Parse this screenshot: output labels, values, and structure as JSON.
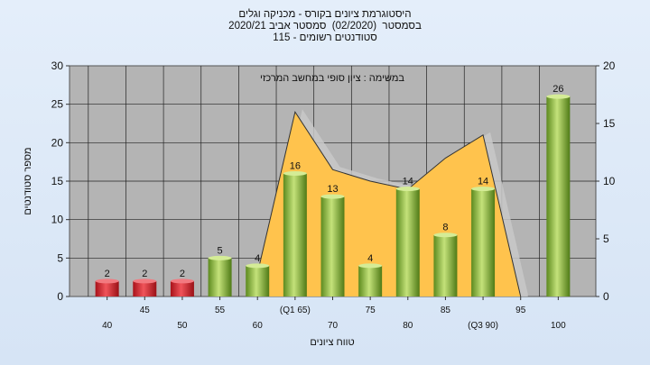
{
  "chart_title_lines": [
    "היסטוגרמת ציונים בקורס - מכניקה וגלים",
    "בסמסטר  (02/2020)  סמסטר אביב 2020/21",
    "סטודנטים רשומים - 115"
  ],
  "colors": {
    "plot_bg": "#b4b4b4",
    "bar_low": "#d8232c",
    "bar_pass": "#8cbc3c",
    "area_fill": "#ffc34d",
    "area_shadow": "#c8c8c8"
  },
  "chart_data": {
    "type": "bar",
    "title": "היסטוגרמת ציונים בקורס - מכניקה וגלים",
    "annotation": "במשימה : ציון סופי במחשב המרכזי",
    "xlabel": "טווח ציונים",
    "ylabel": "מספר סטודנטים",
    "ylim": [
      0,
      30
    ],
    "y2lim": [
      0,
      20
    ],
    "yticks": [
      0,
      5,
      10,
      15,
      20,
      25,
      30
    ],
    "y2ticks": [
      0,
      5,
      10,
      15,
      20
    ],
    "grid": true,
    "categories": [
      "40",
      "45",
      "50",
      "55",
      "60",
      "(Q1 65)",
      "70",
      "75",
      "80",
      "85",
      "(Q3 90)",
      "95",
      "100"
    ],
    "values": [
      2,
      2,
      2,
      5,
      4,
      16,
      13,
      4,
      14,
      8,
      14,
      0,
      26
    ],
    "data_labels": [
      "2",
      "2",
      "2",
      "5",
      "4",
      "16",
      "13",
      "4",
      "14",
      "8",
      "14",
      "",
      "26"
    ],
    "area_series_values_y2": [
      2,
      16,
      11,
      10,
      9.3,
      12,
      14,
      0
    ],
    "area_start_category": 4
  }
}
